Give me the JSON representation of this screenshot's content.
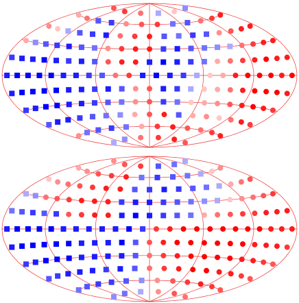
{
  "chart_data": [
    {
      "type": "hammer",
      "clim": [
        -9,
        9
      ],
      "rows": [
        {
          "lat": 75,
          "values": [
            6,
            7,
            5,
            -3,
            2,
            -4
          ]
        },
        {
          "lat": 60,
          "values": [
            3,
            5,
            -6,
            -7,
            4,
            6,
            7,
            -5,
            -6,
            5,
            7,
            8
          ]
        },
        {
          "lat": 45,
          "values": [
            4,
            2,
            -3,
            -6,
            -7,
            -8,
            5,
            7,
            8,
            -6,
            -5,
            -7,
            -6,
            4,
            6,
            8,
            8
          ]
        },
        {
          "lat": 30,
          "values": [
            3,
            -4,
            -6,
            -7,
            -8,
            -6,
            -5,
            4,
            7,
            8,
            8,
            -7,
            -8,
            -6,
            -5,
            -4,
            -3,
            5,
            7,
            8,
            8
          ]
        },
        {
          "lat": 15,
          "values": [
            -7,
            -8,
            -8,
            -9,
            -8,
            -7,
            -8,
            -6,
            6,
            8,
            8,
            -8,
            -9,
            -8,
            -7,
            -5,
            3,
            5,
            7,
            8,
            9,
            8,
            8
          ]
        },
        {
          "lat": 0,
          "values": [
            -8,
            -9,
            -9,
            -9,
            -9,
            -8,
            -8,
            -7,
            -6,
            5,
            7,
            -8,
            -9,
            -8,
            -7,
            -3,
            2,
            3,
            8,
            9,
            9,
            9,
            8,
            9
          ]
        },
        {
          "lat": -15,
          "values": [
            -8,
            -9,
            -9,
            -9,
            -9,
            -8,
            -8,
            -7,
            -8,
            -6,
            4,
            6,
            -8,
            -7,
            -3,
            2,
            3,
            5,
            8,
            9,
            9,
            9,
            8
          ]
        },
        {
          "lat": -30,
          "values": [
            -7,
            -8,
            -9,
            -9,
            -8,
            -8,
            -7,
            -6,
            -5,
            4,
            6,
            -7,
            -5,
            2,
            3,
            4,
            6,
            8,
            9,
            8,
            7
          ]
        },
        {
          "lat": -45,
          "values": [
            -6,
            -8,
            -8,
            -7,
            -6,
            -5,
            -4,
            3,
            6,
            8,
            -6,
            3,
            4,
            2,
            5,
            8,
            7
          ]
        },
        {
          "lat": -60,
          "values": [
            4,
            -5,
            -6,
            -7,
            -5,
            3,
            7,
            8,
            6,
            5,
            7,
            8
          ]
        },
        {
          "lat": -75,
          "values": [
            -3,
            -4,
            5,
            7,
            8,
            6
          ]
        }
      ]
    },
    {
      "type": "hammer",
      "clim": [
        -9,
        9
      ],
      "rows": [
        {
          "lat": 75,
          "values": [
            4,
            6,
            7,
            -6,
            -5,
            -3
          ]
        },
        {
          "lat": 60,
          "values": [
            3,
            4,
            6,
            7,
            8,
            -5,
            -7,
            -6,
            -5,
            -3,
            2,
            4
          ]
        },
        {
          "lat": 45,
          "values": [
            2,
            4,
            5,
            6,
            7,
            8,
            8,
            -6,
            -7,
            -8,
            -7,
            -6,
            -5,
            -3,
            3,
            5,
            6
          ]
        },
        {
          "lat": 30,
          "values": [
            -3,
            -4,
            5,
            6,
            7,
            8,
            8,
            8,
            -7,
            -8,
            -8,
            -7,
            -6,
            -5,
            -4,
            -3,
            2,
            4,
            5,
            6,
            7
          ]
        },
        {
          "lat": 15,
          "values": [
            -5,
            -6,
            -7,
            -6,
            -7,
            6,
            7,
            8,
            8,
            -8,
            -9,
            -8,
            -7,
            -6,
            -5,
            3,
            5,
            6,
            7,
            7,
            8,
            8,
            8
          ]
        },
        {
          "lat": 0,
          "values": [
            -8,
            -9,
            -9,
            -9,
            -9,
            -8,
            -8,
            -8,
            -8,
            -8,
            -9,
            -7,
            7,
            8,
            9,
            9,
            9,
            9,
            9,
            9,
            9,
            8,
            8,
            8
          ]
        },
        {
          "lat": -15,
          "values": [
            -8,
            -9,
            -9,
            -9,
            -9,
            -9,
            -8,
            -8,
            -8,
            -9,
            -6,
            6,
            8,
            9,
            9,
            9,
            9,
            9,
            9,
            8,
            8,
            8,
            7
          ]
        },
        {
          "lat": -30,
          "values": [
            -7,
            -8,
            -9,
            -9,
            -9,
            -8,
            -8,
            -8,
            -8,
            -6,
            5,
            7,
            8,
            9,
            9,
            9,
            9,
            8,
            8,
            7,
            6
          ]
        },
        {
          "lat": -45,
          "values": [
            -6,
            -7,
            -8,
            -8,
            -8,
            -7,
            -8,
            -6,
            5,
            7,
            8,
            9,
            9,
            8,
            8,
            7,
            6
          ]
        },
        {
          "lat": -60,
          "values": [
            -5,
            -6,
            -7,
            -7,
            -6,
            -4,
            4,
            6,
            7,
            8,
            7,
            6
          ]
        },
        {
          "lat": -75,
          "values": [
            -4,
            -5,
            -3,
            4,
            6,
            5
          ]
        }
      ]
    }
  ]
}
